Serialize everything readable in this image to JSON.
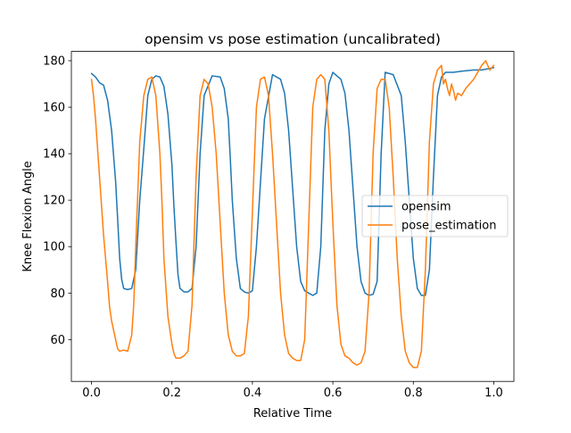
{
  "chart_data": {
    "type": "line",
    "title": "opensim vs pose estimation (uncalibrated)",
    "xlabel": "Relative Time",
    "ylabel": "Knee Flexion Angle",
    "xlim": [
      -0.05,
      1.05
    ],
    "ylim": [
      42,
      184
    ],
    "xticks": [
      0.0,
      0.2,
      0.4,
      0.6,
      0.8,
      1.0
    ],
    "xtick_labels": [
      "0.0",
      "0.2",
      "0.4",
      "0.6",
      "0.8",
      "1.0"
    ],
    "yticks": [
      60,
      80,
      100,
      120,
      140,
      160,
      180
    ],
    "ytick_labels": [
      "60",
      "80",
      "100",
      "120",
      "140",
      "160",
      "180"
    ],
    "grid": false,
    "legend_position": "center-right",
    "series": [
      {
        "name": "opensim",
        "color": "#1f77b4",
        "x": [
          0.0,
          0.01,
          0.02,
          0.03,
          0.04,
          0.05,
          0.06,
          0.065,
          0.07,
          0.075,
          0.08,
          0.09,
          0.1,
          0.11,
          0.115,
          0.12,
          0.13,
          0.14,
          0.15,
          0.16,
          0.17,
          0.18,
          0.19,
          0.2,
          0.205,
          0.21,
          0.215,
          0.22,
          0.23,
          0.24,
          0.25,
          0.26,
          0.27,
          0.28,
          0.3,
          0.32,
          0.33,
          0.34,
          0.345,
          0.35,
          0.36,
          0.37,
          0.38,
          0.39,
          0.4,
          0.41,
          0.43,
          0.45,
          0.47,
          0.48,
          0.49,
          0.5,
          0.51,
          0.52,
          0.53,
          0.54,
          0.55,
          0.56,
          0.57,
          0.58,
          0.59,
          0.6,
          0.62,
          0.63,
          0.64,
          0.65,
          0.66,
          0.67,
          0.68,
          0.69,
          0.7,
          0.71,
          0.72,
          0.73,
          0.75,
          0.77,
          0.78,
          0.79,
          0.8,
          0.81,
          0.82,
          0.83,
          0.84,
          0.85,
          0.86,
          0.87,
          0.88,
          0.9,
          0.92,
          0.95,
          0.97,
          1.0
        ],
        "values": [
          174.5,
          173,
          170.5,
          169.5,
          163,
          150,
          128,
          112,
          95,
          86,
          82,
          81.5,
          82,
          90,
          105,
          120,
          142,
          165,
          172,
          173.5,
          173,
          169,
          157,
          135,
          117,
          102,
          88,
          82,
          80.5,
          80.5,
          82,
          100,
          140,
          165,
          173.5,
          173,
          168,
          155,
          138,
          120,
          95,
          82,
          80.5,
          80,
          81,
          100,
          155,
          174,
          172,
          166,
          150,
          125,
          100,
          85,
          81,
          80,
          79,
          80,
          100,
          150,
          170,
          175,
          172,
          166,
          150,
          125,
          100,
          85,
          80,
          79,
          79.5,
          85,
          140,
          175,
          174,
          165,
          145,
          120,
          95,
          82,
          79,
          79,
          90,
          130,
          165,
          173,
          175,
          175,
          175.5,
          176,
          176,
          177
        ]
      },
      {
        "name": "pose_estimation",
        "color": "#ff7f0e",
        "x": [
          0.0,
          0.005,
          0.01,
          0.02,
          0.03,
          0.04,
          0.045,
          0.05,
          0.06,
          0.065,
          0.07,
          0.08,
          0.09,
          0.1,
          0.105,
          0.11,
          0.12,
          0.13,
          0.14,
          0.15,
          0.16,
          0.17,
          0.175,
          0.18,
          0.19,
          0.2,
          0.205,
          0.21,
          0.22,
          0.23,
          0.24,
          0.25,
          0.26,
          0.27,
          0.28,
          0.29,
          0.3,
          0.31,
          0.32,
          0.33,
          0.34,
          0.35,
          0.36,
          0.37,
          0.38,
          0.39,
          0.4,
          0.41,
          0.42,
          0.43,
          0.44,
          0.45,
          0.46,
          0.47,
          0.48,
          0.49,
          0.5,
          0.51,
          0.52,
          0.53,
          0.54,
          0.55,
          0.56,
          0.57,
          0.58,
          0.59,
          0.6,
          0.61,
          0.62,
          0.63,
          0.64,
          0.65,
          0.66,
          0.67,
          0.68,
          0.69,
          0.7,
          0.71,
          0.72,
          0.73,
          0.74,
          0.75,
          0.76,
          0.77,
          0.78,
          0.79,
          0.8,
          0.81,
          0.82,
          0.83,
          0.84,
          0.85,
          0.86,
          0.87,
          0.875,
          0.88,
          0.885,
          0.89,
          0.895,
          0.9,
          0.905,
          0.91,
          0.92,
          0.93,
          0.94,
          0.95,
          0.96,
          0.97,
          0.98,
          0.99,
          1.0
        ],
        "values": [
          172,
          165,
          155,
          130,
          105,
          85,
          74,
          68,
          60,
          56,
          55,
          55.5,
          55,
          62,
          75,
          100,
          145,
          165,
          172,
          173,
          165,
          140,
          120,
          95,
          70,
          58,
          54,
          52,
          52,
          53,
          55,
          75,
          130,
          165,
          172,
          170,
          160,
          140,
          110,
          80,
          62,
          55,
          53,
          53,
          54,
          70,
          115,
          160,
          172,
          173,
          165,
          140,
          110,
          80,
          62,
          54,
          52,
          51,
          51,
          60,
          110,
          160,
          172,
          174,
          172,
          150,
          110,
          75,
          58,
          53,
          52,
          50,
          49,
          50,
          55,
          80,
          140,
          168,
          172,
          172,
          160,
          130,
          95,
          70,
          55,
          50,
          48,
          48,
          55,
          90,
          145,
          170,
          176,
          178,
          170,
          172,
          168,
          165,
          170,
          167,
          163,
          166,
          165,
          168,
          170,
          172,
          175,
          178,
          180,
          176,
          178
        ]
      }
    ]
  }
}
